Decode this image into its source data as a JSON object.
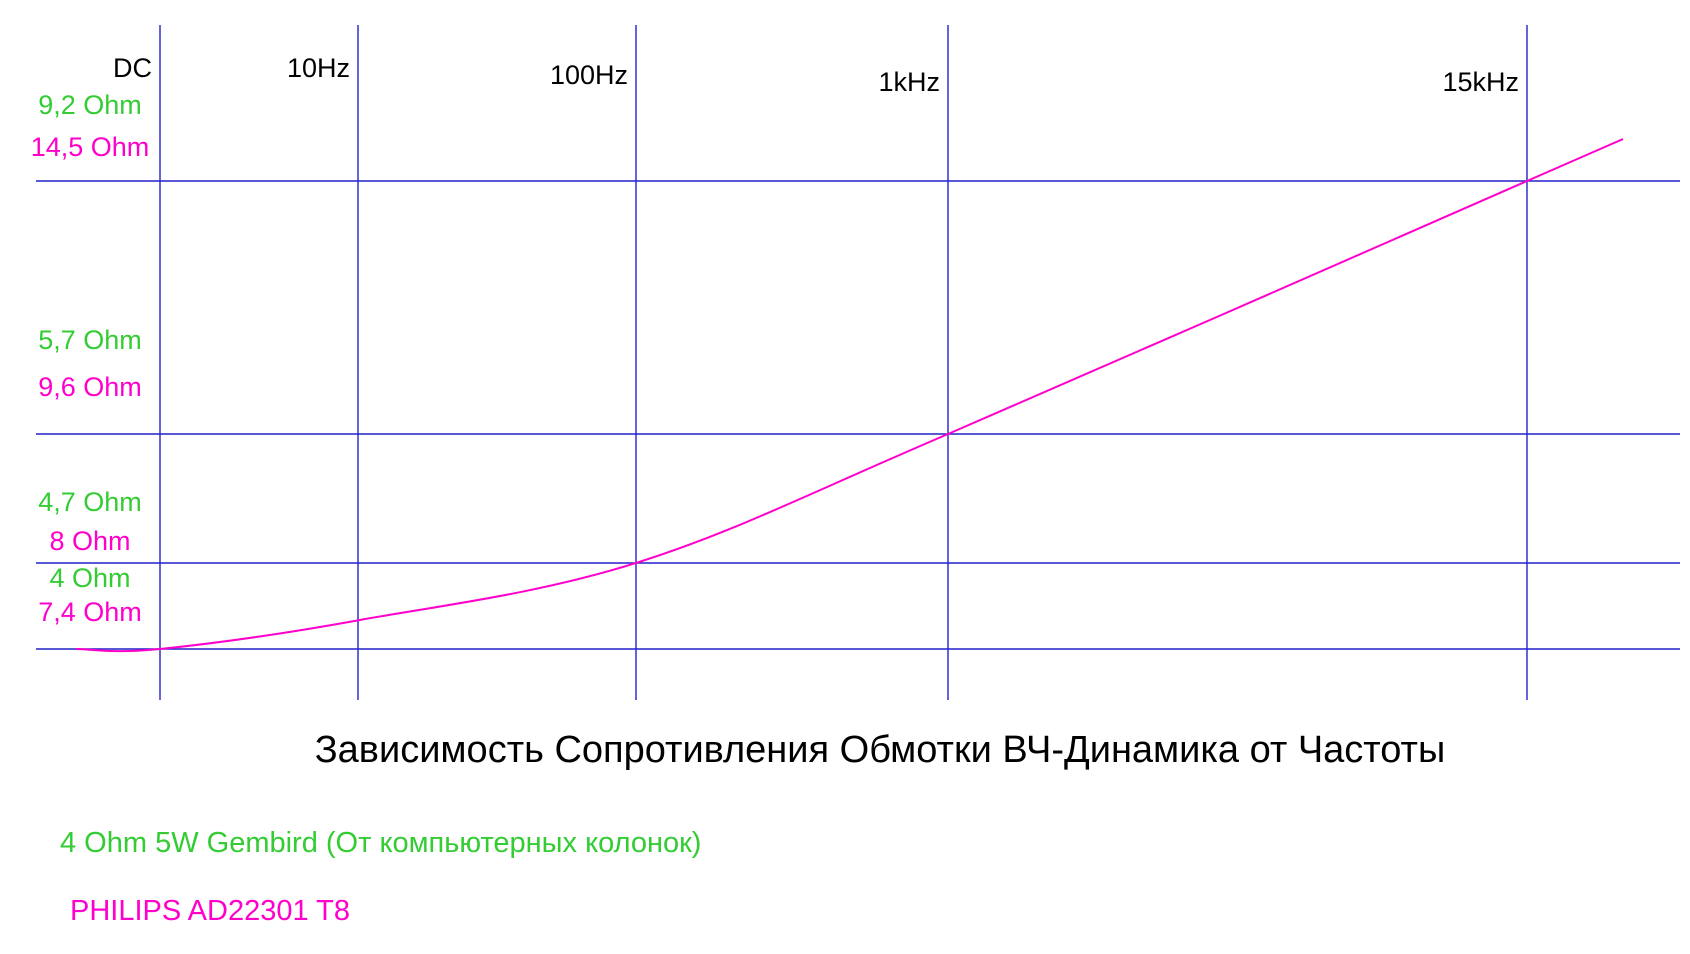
{
  "chart_data": {
    "type": "line",
    "title": "Зависимость Сопротивления Обмотки ВЧ-Динамика от Частоты",
    "x_scale": "log",
    "x_ticks": [
      "DC",
      "10Hz",
      "100Hz",
      "1kHz",
      "15kHz"
    ],
    "y_ticks": [
      {
        "green": "4 Ohm",
        "magenta": "7,4 Ohm"
      },
      {
        "green": "4,7 Ohm",
        "magenta": "8 Ohm"
      },
      {
        "green": "5,7 Ohm",
        "magenta": "9,6 Ohm"
      },
      {
        "green": "9,2 Ohm",
        "magenta": "14,5 Ohm"
      }
    ],
    "grid": true,
    "legend": [
      {
        "name": "4 Ohm 5W Gembird (От компьютерных колонок)",
        "color": "#33cc33"
      },
      {
        "name": "PHILIPS AD22301 T8",
        "color": "#ff00cc"
      }
    ],
    "series": [
      {
        "name": "PHILIPS AD22301 T8",
        "color": "#ff00cc",
        "points": [
          {
            "x": "DC",
            "y": 7.4
          },
          {
            "x": "10Hz",
            "y": 7.6
          },
          {
            "x": "100Hz",
            "y": 8.0
          },
          {
            "x": "1kHz",
            "y": 9.6
          },
          {
            "x": "15kHz",
            "y": 14.5
          }
        ]
      }
    ]
  },
  "colors": {
    "grid": "#2222cc",
    "green": "#33cc33",
    "magenta": "#ff00cc",
    "text": "#000000"
  }
}
